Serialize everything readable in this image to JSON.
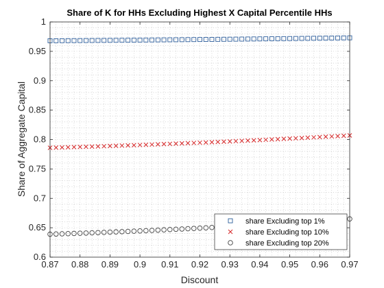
{
  "chart_data": {
    "type": "scatter",
    "title": "Share of K for HHs Excluding Highest X Capital Percentile HHs",
    "xlabel": "Discount",
    "ylabel": "Share of Aggregate Capital",
    "xlim": [
      0.87,
      0.97
    ],
    "ylim": [
      0.6,
      1.0
    ],
    "grid": "minor dotted",
    "x_ticks": [
      "0.87",
      "0.88",
      "0.89",
      "0.9",
      "0.91",
      "0.92",
      "0.93",
      "0.94",
      "0.95",
      "0.96",
      "0.97"
    ],
    "y_ticks": [
      "0.6",
      "0.65",
      "0.7",
      "0.75",
      "0.8",
      "0.85",
      "0.9",
      "0.95",
      "1"
    ],
    "x_start": 0.87,
    "x_step": 0.002,
    "x_count": 51,
    "series": [
      {
        "name": "share Excluding top 1%",
        "marker": "square",
        "color": "#2b5c9a",
        "y_start": 0.968,
        "y_end": 0.973,
        "curvature": 0.3
      },
      {
        "name": "share Excluding top 10%",
        "marker": "x",
        "color": "#d62728",
        "y_start": 0.786,
        "y_end": 0.807,
        "curvature": 0.35
      },
      {
        "name": "share Excluding top 20%",
        "marker": "circle",
        "color": "#404040",
        "y_start": 0.639,
        "y_end": 0.665,
        "curvature": 0.4
      }
    ],
    "legend_position": "bottom-right"
  }
}
